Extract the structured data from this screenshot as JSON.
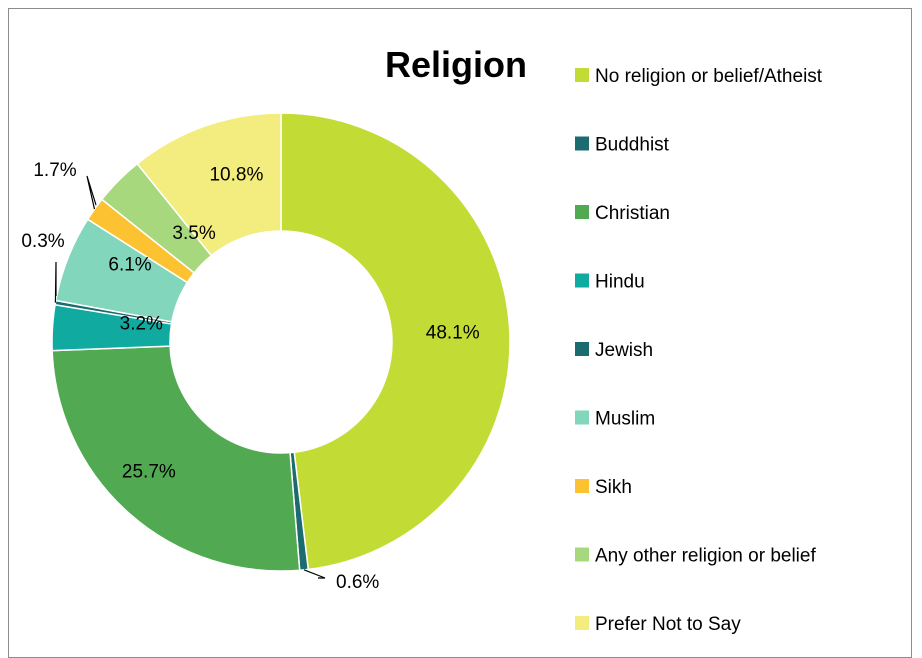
{
  "chart_data": {
    "type": "pie",
    "subtype": "doughnut",
    "title": "Religion",
    "categories": [
      "No religion or belief/Atheist",
      "Buddhist",
      "Christian",
      "Hindu",
      "Jewish",
      "Muslim",
      "Sikh",
      "Any other religion or belief",
      "Prefer Not to Say"
    ],
    "values": [
      48.1,
      0.6,
      25.7,
      3.2,
      0.3,
      6.1,
      1.7,
      3.5,
      10.8
    ],
    "labels": [
      "48.1%",
      "0.6%",
      "25.7%",
      "3.2%",
      "0.3%",
      "6.1%",
      "1.7%",
      "3.5%",
      "10.8%"
    ],
    "colors": [
      "#c3dc35",
      "#1b6b6f",
      "#51a952",
      "#10aaa0",
      "#1b6b6f",
      "#82d6bc",
      "#fdc232",
      "#a8d87e",
      "#f2ed7e"
    ],
    "legend_position": "right",
    "unit": "%"
  }
}
